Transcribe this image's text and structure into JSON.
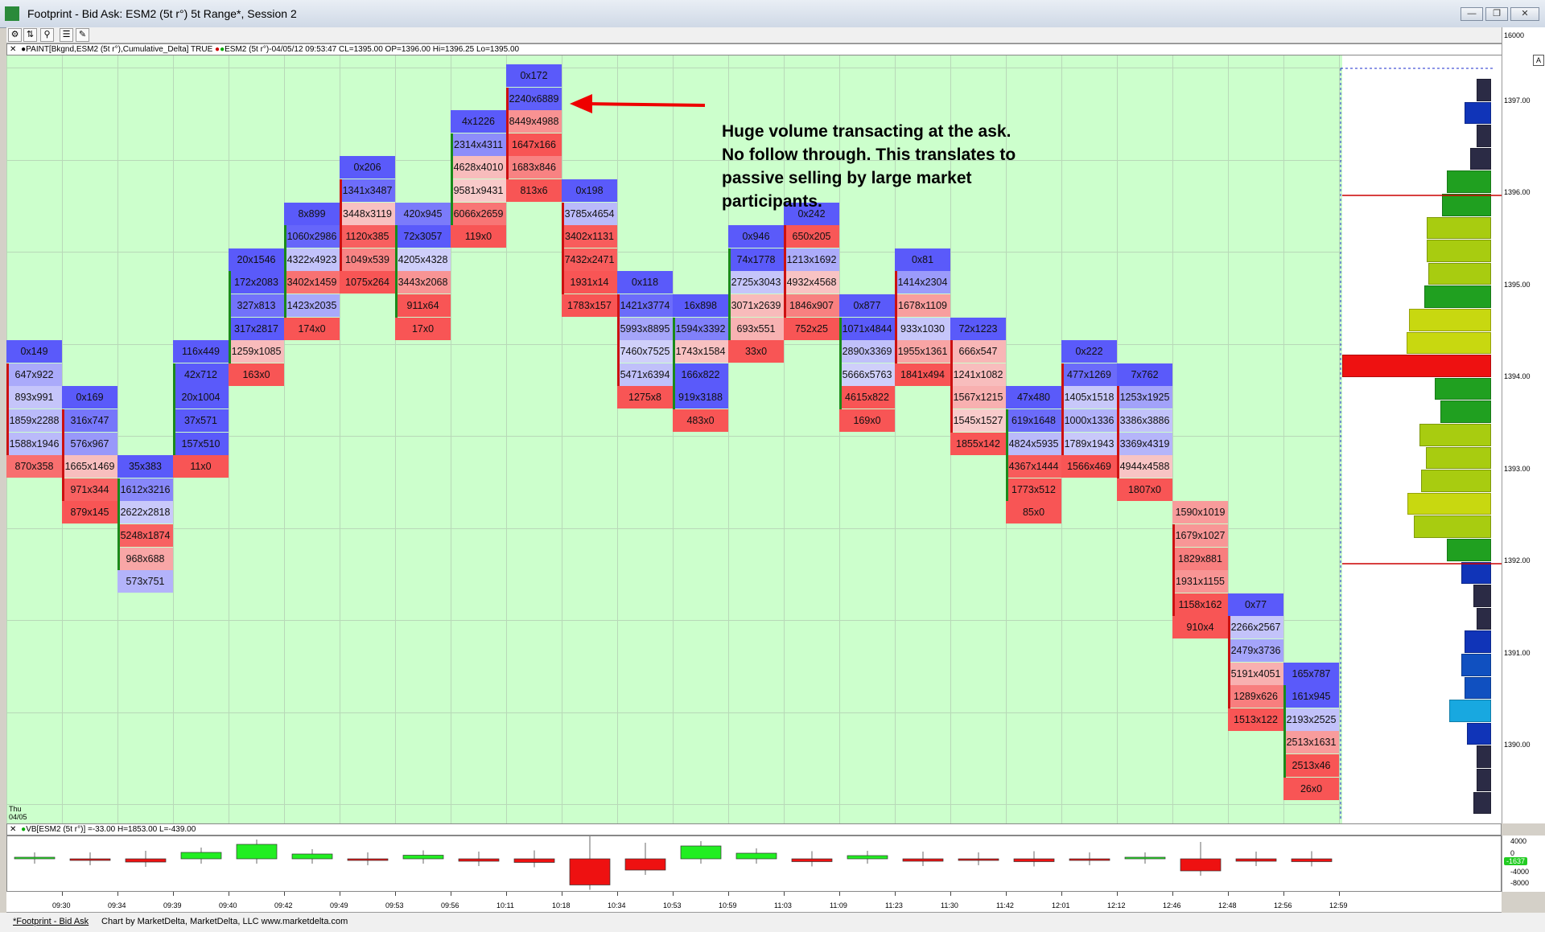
{
  "window": {
    "title": "Footprint - Bid Ask: ESM2 (5t r°) 5t Range*, Session 2",
    "controls": [
      "minimize",
      "restore",
      "close"
    ]
  },
  "toolbar": {
    "icons": [
      "settings-icon",
      "chart-type-icon",
      "zoom-icon",
      "properties-icon",
      "drawing-icon"
    ]
  },
  "info_bar": {
    "study_text": "PAINT[Bkgnd,ESM2 (5t r°),Cumulative_Delta] TRUE",
    "symbol_text": "ESM2 (5t r°)-04/05/12 09:53:47 CL=1395.00 OP=1396.00 Hi=1396.25 Lo=1395.00"
  },
  "annotation": {
    "lines": [
      "Huge volume transacting at the ask.",
      "No follow through. This translates to",
      "passive selling by large market",
      "participants."
    ]
  },
  "price_axis": {
    "labels": [
      "16000",
      "1397.00",
      "1396.00",
      "1395.00",
      "1394.00",
      "1393.00",
      "1392.00",
      "1391.00",
      "1390.00"
    ],
    "scroll_button": "A"
  },
  "date_label": {
    "line1": "Thu",
    "line2": "04/05"
  },
  "chart_data": {
    "type": "table",
    "description_cell_format": "bid x ask",
    "price_ticks_top_to_bottom": [
      "1397.25",
      "1397.00",
      "1396.75",
      "1396.50",
      "1396.25",
      "1396.00",
      "1395.75",
      "1395.50",
      "1395.25",
      "1395.00",
      "1394.75",
      "1394.50",
      "1394.25",
      "1394.00",
      "1393.75",
      "1393.50",
      "1393.25",
      "1393.00",
      "1392.75",
      "1392.50",
      "1392.25",
      "1392.00",
      "1391.75",
      "1391.50",
      "1391.25",
      "1391.00",
      "1390.75",
      "1390.50",
      "1390.25",
      "1390.00",
      "1389.75"
    ],
    "bars": [
      {
        "time": "",
        "dir": "down",
        "start": 12,
        "cells": [
          "0x149",
          "647x922",
          "893x991",
          "1859x2288",
          "1588x1946",
          "870x358"
        ]
      },
      {
        "time": "09:30",
        "dir": "down",
        "start": 14,
        "cells": [
          "0x169",
          "316x747",
          "576x967",
          "1665x1469",
          "971x344",
          "879x145"
        ]
      },
      {
        "time": "09:34",
        "dir": "up",
        "start": 17,
        "cells": [
          "35x383",
          "1612x3216",
          "2622x2818",
          "5248x1874",
          "968x688",
          "573x751"
        ]
      },
      {
        "time": "09:39",
        "dir": "up",
        "start": 12,
        "cells": [
          "116x449",
          "42x712",
          "20x1004",
          "37x571",
          "157x510",
          "11x0"
        ]
      },
      {
        "time": "09:40",
        "dir": "up",
        "start": 8,
        "cells": [
          "20x1546",
          "172x2083",
          "327x813",
          "317x2817",
          "1259x1085",
          "163x0"
        ]
      },
      {
        "time": "09:42",
        "dir": "up",
        "start": 6,
        "cells": [
          "8x899",
          "1060x2986",
          "4322x4923",
          "3402x1459",
          "1423x2035",
          "174x0"
        ]
      },
      {
        "time": "09:49",
        "dir": "down",
        "start": 4,
        "cells": [
          "0x206",
          "1341x3487",
          "3448x3119",
          "1120x385",
          "1049x539",
          "1075x264"
        ]
      },
      {
        "time": "09:53",
        "dir": "up",
        "start": 6,
        "cells": [
          "420x945",
          "72x3057",
          "4205x4328",
          "3443x2068",
          "911x64",
          "17x0"
        ]
      },
      {
        "time": "09:56",
        "dir": "up",
        "start": 2,
        "cells": [
          "4x1226",
          "2314x4311",
          "4628x4010",
          "9581x9431",
          "6066x2659",
          "119x0"
        ]
      },
      {
        "time": "10:11",
        "dir": "down",
        "start": 0,
        "cells": [
          "0x172",
          "2240x6889",
          "8449x4988",
          "1647x166",
          "1683x846",
          "813x6"
        ]
      },
      {
        "time": "10:18",
        "dir": "down",
        "start": 5,
        "cells": [
          "0x198",
          "3785x4654",
          "3402x1131",
          "7432x2471",
          "1931x14",
          "1783x157"
        ]
      },
      {
        "time": "10:34",
        "dir": "down",
        "start": 9,
        "cells": [
          "0x118",
          "1421x3774",
          "5993x8895",
          "7460x7525",
          "5471x6394",
          "1275x8"
        ]
      },
      {
        "time": "10:53",
        "dir": "up",
        "start": 10,
        "cells": [
          "16x898",
          "1594x3392",
          "1743x1584",
          "166x822",
          "919x3188",
          "483x0"
        ]
      },
      {
        "time": "10:59",
        "dir": "up",
        "start": 7,
        "cells": [
          "0x946",
          "74x1778",
          "2725x3043",
          "3071x2639",
          "693x551",
          "33x0"
        ]
      },
      {
        "time": "11:03",
        "dir": "down",
        "start": 6,
        "cells": [
          "0x242",
          "650x205",
          "1213x1692",
          "4932x4568",
          "1846x907",
          "752x25"
        ]
      },
      {
        "time": "11:09",
        "dir": "up",
        "start": 10,
        "cells": [
          "0x877",
          "1071x4844",
          "2890x3369",
          "5666x5763",
          "4615x822",
          "169x0"
        ]
      },
      {
        "time": "11:23",
        "dir": "down",
        "start": 8,
        "cells": [
          "0x81",
          "1414x2304",
          "1678x1109",
          "933x1030",
          "1955x1361",
          "1841x494"
        ]
      },
      {
        "time": "11:30",
        "dir": "down",
        "start": 11,
        "cells": [
          "72x1223",
          "666x547",
          "1241x1082",
          "1567x1215",
          "1545x1527",
          "1855x142"
        ]
      },
      {
        "time": "11:42",
        "dir": "up",
        "start": 14,
        "cells": [
          "47x480",
          "619x1648",
          "4824x5935",
          "4367x1444",
          "1773x512",
          "85x0"
        ]
      },
      {
        "time": "12:01",
        "dir": "down",
        "start": 12,
        "cells": [
          "0x222",
          "477x1269",
          "1405x1518",
          "1000x1336",
          "1789x1943",
          "1566x469"
        ]
      },
      {
        "time": "12:12",
        "dir": "down",
        "start": 13,
        "cells": [
          "7x762",
          "1253x1925",
          "3386x3886",
          "3369x4319",
          "4944x4588",
          "1807x0"
        ]
      },
      {
        "time": "12:46",
        "dir": "down",
        "start": 19,
        "cells": [
          "1590x1019",
          "1679x1027",
          "1829x881",
          "1931x1155",
          "1158x162",
          "910x4"
        ]
      },
      {
        "time": "12:48",
        "dir": "down",
        "start": 23,
        "cells": [
          "0x77",
          "2266x2567",
          "2479x3736",
          "5191x4051",
          "1289x626",
          "1513x122"
        ]
      },
      {
        "time": "12:56",
        "dir": "up",
        "start": 26,
        "cells": [
          "165x787",
          "161x945",
          "2193x2525",
          "2513x1631",
          "2513x46",
          "26x0"
        ]
      }
    ],
    "volume_profile": [
      {
        "price": "1397.00",
        "volume": 0.1,
        "color": "#2b2b45"
      },
      {
        "price": "1396.75",
        "volume": 0.18,
        "color": "#1034b8"
      },
      {
        "price": "1396.50",
        "volume": 0.1,
        "color": "#2b2b45"
      },
      {
        "price": "1396.25",
        "volume": 0.14,
        "color": "#2b2b45"
      },
      {
        "price": "1396.00",
        "volume": 0.3,
        "color": "#20a020"
      },
      {
        "price": "1395.75",
        "volume": 0.33,
        "color": "#20a020"
      },
      {
        "price": "1395.50",
        "volume": 0.43,
        "color": "#a8cc10"
      },
      {
        "price": "1395.25",
        "volume": 0.43,
        "color": "#a8cc10"
      },
      {
        "price": "1395.00",
        "volume": 0.42,
        "color": "#a8cc10"
      },
      {
        "price": "1394.75",
        "volume": 0.45,
        "color": "#20a020"
      },
      {
        "price": "1394.50",
        "volume": 0.55,
        "color": "#c8d810"
      },
      {
        "price": "1394.25",
        "volume": 0.57,
        "color": "#c8d810"
      },
      {
        "price": "1394.00",
        "volume": 1.0,
        "color": "#ee1111"
      },
      {
        "price": "1393.75",
        "volume": 0.38,
        "color": "#20a020"
      },
      {
        "price": "1393.50",
        "volume": 0.34,
        "color": "#20a020"
      },
      {
        "price": "1393.25",
        "volume": 0.48,
        "color": "#a8cc10"
      },
      {
        "price": "1393.00",
        "volume": 0.44,
        "color": "#a8cc10"
      },
      {
        "price": "1392.75",
        "volume": 0.47,
        "color": "#a8cc10"
      },
      {
        "price": "1392.50",
        "volume": 0.56,
        "color": "#c8d810"
      },
      {
        "price": "1392.25",
        "volume": 0.52,
        "color": "#a8cc10"
      },
      {
        "price": "1392.00",
        "volume": 0.3,
        "color": "#20a020"
      },
      {
        "price": "1391.75",
        "volume": 0.2,
        "color": "#1034b8"
      },
      {
        "price": "1391.50",
        "volume": 0.12,
        "color": "#2b2b45"
      },
      {
        "price": "1391.25",
        "volume": 0.1,
        "color": "#2b2b45"
      },
      {
        "price": "1391.00",
        "volume": 0.18,
        "color": "#1034b8"
      },
      {
        "price": "1390.75",
        "volume": 0.2,
        "color": "#1050c0"
      },
      {
        "price": "1390.50",
        "volume": 0.18,
        "color": "#1050c0"
      },
      {
        "price": "1390.25",
        "volume": 0.28,
        "color": "#18a8e0"
      },
      {
        "price": "1390.00",
        "volume": 0.16,
        "color": "#1034b8"
      },
      {
        "price": "1389.75",
        "volume": 0.1,
        "color": "#2b2b45"
      },
      {
        "price": "1389.50",
        "volume": 0.1,
        "color": "#2b2b45"
      },
      {
        "price": "1389.25",
        "volume": 0.12,
        "color": "#2b2b45"
      }
    ],
    "lower_study": {
      "label": "VB[ESM2 (5t r°)] =-33.00 H=1853.00 L=-439.00",
      "axis_labels": [
        "4000",
        "0",
        "-4000",
        "-8000"
      ],
      "current_value_badge": "-1637",
      "values": [
        100,
        -200,
        -800,
        1600,
        3600,
        1200,
        -100,
        900,
        -600,
        -900,
        -6500,
        -2800,
        3200,
        1400,
        -700,
        800,
        -600,
        -400,
        -700,
        -100,
        300,
        -3000,
        -600,
        -700
      ]
    },
    "time_labels": [
      "09:30",
      "09:34",
      "09:39",
      "09:40",
      "09:42",
      "09:49",
      "09:53",
      "09:56",
      "10:11",
      "10:18",
      "10:34",
      "10:53",
      "10:59",
      "11:03",
      "11:09",
      "11:23",
      "11:30",
      "11:42",
      "12:01",
      "12:12",
      "12:46",
      "12:48",
      "12:56",
      "12:59"
    ]
  },
  "statusbar": {
    "tab_label": "*Footprint - Bid Ask",
    "credit": "Chart by MarketDelta, MarketDelta, LLC www.marketdelta.com"
  },
  "colors": {
    "chart_bg": "#ccffcc",
    "up_bar": "#1a8a1a",
    "down_bar": "#cc1111",
    "ask_dominant": "#7a7aee",
    "bid_dominant": "#ee7070"
  }
}
